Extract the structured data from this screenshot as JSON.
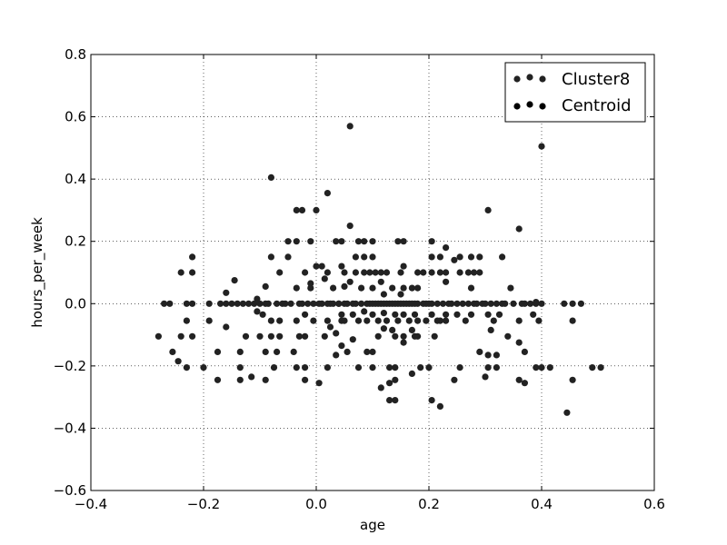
{
  "chart_data": {
    "type": "scatter",
    "title": "",
    "xlabel": "age",
    "ylabel": "hours_per_week",
    "xlim": [
      -0.4,
      0.6
    ],
    "ylim": [
      -0.6,
      0.8
    ],
    "xticks": [
      "−0.4",
      "−0.2",
      "0.0",
      "0.2",
      "0.4",
      "0.6"
    ],
    "yticks": [
      "−0.6",
      "−0.4",
      "−0.2",
      "0.0",
      "0.2",
      "0.4",
      "0.6",
      "0.8"
    ],
    "grid": true,
    "legend_position": "top-right",
    "series": [
      {
        "name": "Cluster8",
        "color": "#222222",
        "points": [
          [
            -0.28,
            -0.105
          ],
          [
            -0.27,
            0.0
          ],
          [
            -0.26,
            0.0
          ],
          [
            -0.255,
            -0.155
          ],
          [
            -0.245,
            -0.185
          ],
          [
            -0.24,
            -0.105
          ],
          [
            -0.24,
            0.1
          ],
          [
            -0.23,
            -0.205
          ],
          [
            -0.23,
            -0.055
          ],
          [
            -0.23,
            0.0
          ],
          [
            -0.22,
            0.15
          ],
          [
            -0.22,
            0.1
          ],
          [
            -0.22,
            0.0
          ],
          [
            -0.22,
            -0.105
          ],
          [
            -0.2,
            -0.205
          ],
          [
            -0.19,
            0.0
          ],
          [
            -0.19,
            -0.055
          ],
          [
            -0.175,
            -0.155
          ],
          [
            -0.175,
            -0.245
          ],
          [
            -0.17,
            0.0
          ],
          [
            -0.16,
            0.035
          ],
          [
            -0.16,
            0.0
          ],
          [
            -0.16,
            -0.075
          ],
          [
            -0.15,
            0.0
          ],
          [
            -0.145,
            0.075
          ],
          [
            -0.14,
            0.0
          ],
          [
            -0.135,
            -0.205
          ],
          [
            -0.135,
            -0.155
          ],
          [
            -0.135,
            -0.245
          ],
          [
            -0.13,
            0.0
          ],
          [
            -0.125,
            -0.105
          ],
          [
            -0.12,
            0.0
          ],
          [
            -0.115,
            -0.235
          ],
          [
            -0.11,
            0.0
          ],
          [
            -0.105,
            0.015
          ],
          [
            -0.105,
            -0.025
          ],
          [
            -0.1,
            0.0
          ],
          [
            -0.1,
            -0.105
          ],
          [
            -0.095,
            -0.035
          ],
          [
            -0.09,
            0.0
          ],
          [
            -0.09,
            0.055
          ],
          [
            -0.09,
            -0.155
          ],
          [
            -0.09,
            -0.245
          ],
          [
            -0.085,
            0.0
          ],
          [
            -0.08,
            -0.055
          ],
          [
            -0.08,
            -0.105
          ],
          [
            -0.08,
            0.405
          ],
          [
            -0.08,
            0.15
          ],
          [
            -0.075,
            -0.205
          ],
          [
            -0.07,
            0.0
          ],
          [
            -0.07,
            -0.155
          ],
          [
            -0.065,
            0.1
          ],
          [
            -0.065,
            -0.055
          ],
          [
            -0.065,
            -0.105
          ],
          [
            -0.06,
            0.0
          ],
          [
            -0.055,
            0.0
          ],
          [
            -0.05,
            0.2
          ],
          [
            -0.05,
            0.15
          ],
          [
            -0.045,
            0.0
          ],
          [
            -0.04,
            -0.155
          ],
          [
            -0.035,
            0.3
          ],
          [
            -0.035,
            0.2
          ],
          [
            -0.035,
            0.05
          ],
          [
            -0.035,
            -0.055
          ],
          [
            -0.035,
            -0.205
          ],
          [
            -0.03,
            0.0
          ],
          [
            -0.03,
            -0.105
          ],
          [
            -0.025,
            0.0
          ],
          [
            -0.025,
            0.3
          ],
          [
            -0.02,
            -0.205
          ],
          [
            -0.02,
            -0.245
          ],
          [
            -0.02,
            0.1
          ],
          [
            -0.02,
            -0.035
          ],
          [
            -0.02,
            -0.105
          ],
          [
            -0.015,
            0.0
          ],
          [
            -0.01,
            0.2
          ],
          [
            -0.01,
            0.05
          ],
          [
            -0.01,
            0.065
          ],
          [
            -0.005,
            0.0
          ],
          [
            -0.005,
            -0.055
          ],
          [
            0.0,
            0.3
          ],
          [
            0.0,
            0.12
          ],
          [
            0.005,
            -0.255
          ],
          [
            0.005,
            0.0
          ],
          [
            0.01,
            0.12
          ],
          [
            0.01,
            0.0
          ],
          [
            0.015,
            -0.105
          ],
          [
            0.015,
            0.08
          ],
          [
            0.02,
            0.355
          ],
          [
            0.02,
            0.1
          ],
          [
            0.02,
            -0.205
          ],
          [
            0.02,
            0.0
          ],
          [
            0.02,
            -0.055
          ],
          [
            0.025,
            0.0
          ],
          [
            0.025,
            -0.075
          ],
          [
            0.03,
            0.05
          ],
          [
            0.03,
            0.0
          ],
          [
            0.035,
            -0.165
          ],
          [
            0.035,
            -0.095
          ],
          [
            0.035,
            0.2
          ],
          [
            0.04,
            0.0
          ],
          [
            0.04,
            0.0
          ],
          [
            0.045,
            0.2
          ],
          [
            0.045,
            0.12
          ],
          [
            0.045,
            -0.035
          ],
          [
            0.045,
            -0.055
          ],
          [
            0.045,
            -0.135
          ],
          [
            0.05,
            0.1
          ],
          [
            0.05,
            0.055
          ],
          [
            0.05,
            0.0
          ],
          [
            0.05,
            -0.055
          ],
          [
            0.055,
            0.0
          ],
          [
            0.055,
            -0.155
          ],
          [
            0.06,
            0.57
          ],
          [
            0.06,
            0.25
          ],
          [
            0.06,
            0.07
          ],
          [
            0.065,
            0.0
          ],
          [
            0.065,
            -0.035
          ],
          [
            0.065,
            -0.115
          ],
          [
            0.07,
            0.15
          ],
          [
            0.07,
            0.1
          ],
          [
            0.07,
            0.0
          ],
          [
            0.075,
            -0.055
          ],
          [
            0.075,
            -0.205
          ],
          [
            0.075,
            0.2
          ],
          [
            0.08,
            0.05
          ],
          [
            0.08,
            0.0
          ],
          [
            0.085,
            0.2
          ],
          [
            0.085,
            0.15
          ],
          [
            0.085,
            0.1
          ],
          [
            0.085,
            -0.025
          ],
          [
            0.09,
            0.0
          ],
          [
            0.09,
            -0.055
          ],
          [
            0.09,
            -0.155
          ],
          [
            0.095,
            0.1
          ],
          [
            0.095,
            0.0
          ],
          [
            0.1,
            0.2
          ],
          [
            0.1,
            0.15
          ],
          [
            0.1,
            0.05
          ],
          [
            0.1,
            0.0
          ],
          [
            0.1,
            -0.035
          ],
          [
            0.1,
            -0.155
          ],
          [
            0.1,
            -0.205
          ],
          [
            0.105,
            0.1
          ],
          [
            0.105,
            0.0
          ],
          [
            0.11,
            0.0
          ],
          [
            0.11,
            -0.055
          ],
          [
            0.11,
            -0.105
          ],
          [
            0.115,
            0.07
          ],
          [
            0.115,
            0.1
          ],
          [
            0.115,
            0.0
          ],
          [
            0.115,
            -0.27
          ],
          [
            0.12,
            0.0
          ],
          [
            0.12,
            0.03
          ],
          [
            0.12,
            -0.03
          ],
          [
            0.12,
            -0.08
          ],
          [
            0.125,
            0.1
          ],
          [
            0.125,
            0.0
          ],
          [
            0.125,
            -0.055
          ],
          [
            0.13,
            0.0
          ],
          [
            0.13,
            -0.205
          ],
          [
            0.13,
            -0.31
          ],
          [
            0.13,
            -0.255
          ],
          [
            0.135,
            0.0
          ],
          [
            0.135,
            0.05
          ],
          [
            0.135,
            -0.085
          ],
          [
            0.14,
            0.0
          ],
          [
            0.14,
            -0.035
          ],
          [
            0.14,
            -0.105
          ],
          [
            0.14,
            -0.245
          ],
          [
            0.14,
            -0.31
          ],
          [
            0.14,
            -0.205
          ],
          [
            0.145,
            0.2
          ],
          [
            0.145,
            0.0
          ],
          [
            0.145,
            -0.055
          ],
          [
            0.15,
            0.1
          ],
          [
            0.15,
            0.0
          ],
          [
            0.15,
            0.03
          ],
          [
            0.155,
            0.2
          ],
          [
            0.155,
            0.12
          ],
          [
            0.155,
            0.05
          ],
          [
            0.155,
            0.0
          ],
          [
            0.155,
            -0.035
          ],
          [
            0.155,
            -0.105
          ],
          [
            0.155,
            -0.125
          ],
          [
            0.16,
            0.0
          ],
          [
            0.165,
            0.0
          ],
          [
            0.165,
            -0.055
          ],
          [
            0.17,
            0.05
          ],
          [
            0.17,
            0.0
          ],
          [
            0.17,
            -0.085
          ],
          [
            0.17,
            -0.225
          ],
          [
            0.175,
            0.0
          ],
          [
            0.175,
            -0.035
          ],
          [
            0.175,
            -0.105
          ],
          [
            0.18,
            0.1
          ],
          [
            0.18,
            0.05
          ],
          [
            0.18,
            0.0
          ],
          [
            0.18,
            -0.055
          ],
          [
            0.18,
            -0.105
          ],
          [
            0.185,
            -0.205
          ],
          [
            0.19,
            0.0
          ],
          [
            0.19,
            0.1
          ],
          [
            0.195,
            -0.055
          ],
          [
            0.195,
            0.0
          ],
          [
            0.2,
            0.0
          ],
          [
            0.2,
            -0.205
          ],
          [
            0.205,
            0.2
          ],
          [
            0.205,
            0.15
          ],
          [
            0.205,
            0.1
          ],
          [
            0.205,
            0.0
          ],
          [
            0.205,
            -0.035
          ],
          [
            0.205,
            -0.31
          ],
          [
            0.21,
            -0.105
          ],
          [
            0.215,
            0.0
          ],
          [
            0.215,
            -0.055
          ],
          [
            0.22,
            0.15
          ],
          [
            0.22,
            0.1
          ],
          [
            0.22,
            -0.055
          ],
          [
            0.22,
            -0.33
          ],
          [
            0.225,
            0.0
          ],
          [
            0.23,
            0.18
          ],
          [
            0.23,
            0.1
          ],
          [
            0.23,
            0.07
          ],
          [
            0.23,
            -0.035
          ],
          [
            0.23,
            -0.055
          ],
          [
            0.235,
            0.0
          ],
          [
            0.24,
            0.0
          ],
          [
            0.245,
            -0.245
          ],
          [
            0.245,
            0.14
          ],
          [
            0.25,
            0.0
          ],
          [
            0.25,
            -0.035
          ],
          [
            0.255,
            0.15
          ],
          [
            0.255,
            0.1
          ],
          [
            0.255,
            -0.205
          ],
          [
            0.26,
            0.0
          ],
          [
            0.265,
            -0.055
          ],
          [
            0.27,
            0.1
          ],
          [
            0.27,
            0.0
          ],
          [
            0.275,
            0.15
          ],
          [
            0.275,
            0.05
          ],
          [
            0.275,
            -0.035
          ],
          [
            0.28,
            0.1
          ],
          [
            0.28,
            0.0
          ],
          [
            0.285,
            0.0
          ],
          [
            0.29,
            0.1
          ],
          [
            0.29,
            0.15
          ],
          [
            0.29,
            -0.155
          ],
          [
            0.295,
            0.0
          ],
          [
            0.3,
            0.0
          ],
          [
            0.3,
            -0.235
          ],
          [
            0.305,
            0.3
          ],
          [
            0.305,
            -0.035
          ],
          [
            0.305,
            -0.165
          ],
          [
            0.305,
            -0.205
          ],
          [
            0.31,
            0.0
          ],
          [
            0.31,
            -0.085
          ],
          [
            0.315,
            -0.055
          ],
          [
            0.32,
            0.0
          ],
          [
            0.32,
            -0.165
          ],
          [
            0.32,
            -0.205
          ],
          [
            0.325,
            -0.035
          ],
          [
            0.33,
            0.0
          ],
          [
            0.33,
            0.15
          ],
          [
            0.335,
            0.0
          ],
          [
            0.34,
            -0.105
          ],
          [
            0.345,
            0.05
          ],
          [
            0.35,
            0.0
          ],
          [
            0.36,
            -0.055
          ],
          [
            0.36,
            -0.125
          ],
          [
            0.36,
            0.24
          ],
          [
            0.36,
            -0.245
          ],
          [
            0.365,
            0.0
          ],
          [
            0.37,
            -0.155
          ],
          [
            0.37,
            -0.255
          ],
          [
            0.37,
            0.0
          ],
          [
            0.38,
            0.0
          ],
          [
            0.385,
            -0.035
          ],
          [
            0.39,
            0.0
          ],
          [
            0.39,
            0.005
          ],
          [
            0.39,
            -0.205
          ],
          [
            0.395,
            -0.055
          ],
          [
            0.4,
            0.505
          ],
          [
            0.4,
            0.0
          ],
          [
            0.4,
            -0.205
          ],
          [
            0.415,
            -0.205
          ],
          [
            0.44,
            0.0
          ],
          [
            0.445,
            -0.35
          ],
          [
            0.455,
            0.0
          ],
          [
            0.455,
            -0.055
          ],
          [
            0.455,
            -0.245
          ],
          [
            0.47,
            0.0
          ],
          [
            0.49,
            -0.205
          ],
          [
            0.505,
            -0.205
          ]
        ]
      }
    ],
    "legend": [
      {
        "label": "Cluster8",
        "color": "#222222"
      },
      {
        "label": "Centroid",
        "color": "#000000"
      }
    ]
  }
}
